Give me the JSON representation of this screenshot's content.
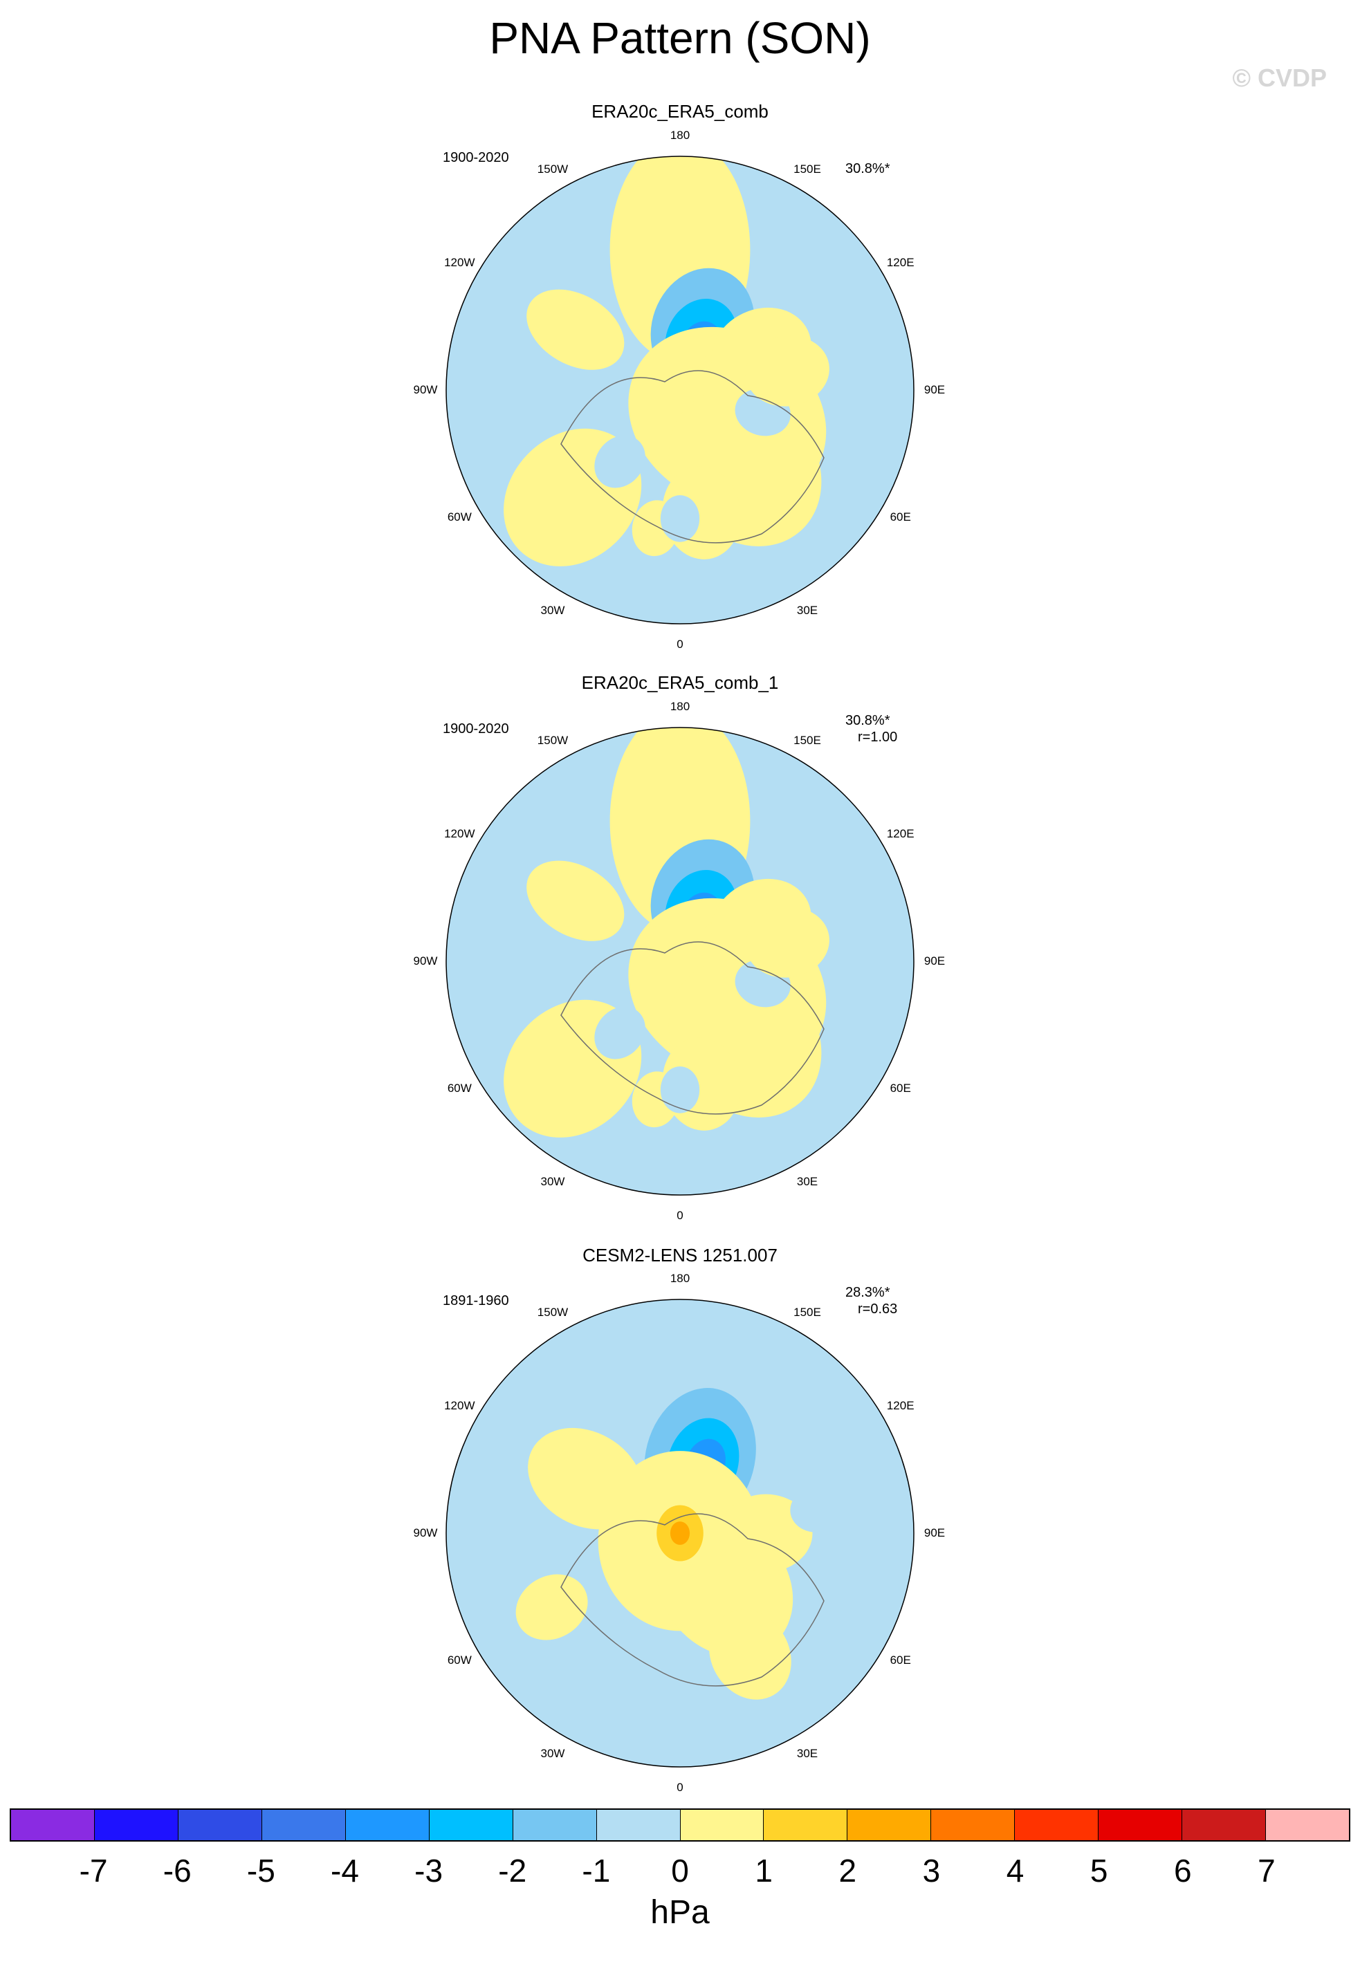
{
  "figure": {
    "title": "PNA Pattern (SON)",
    "watermark": "© CVDP",
    "unit": "hPa"
  },
  "colors": {
    "neg7": "#8a2be2",
    "neg6": "#1e12ff",
    "neg5": "#2f4ce6",
    "neg4": "#3a78eb",
    "neg3": "#1e98ff",
    "neg2": "#00bfff",
    "neg1": "#76c6f2",
    "neg0": "#b4def3",
    "pos0": "#fff68f",
    "pos1": "#ffd32a",
    "pos2": "#ffaa00",
    "pos3": "#ff7700",
    "pos4": "#ff3300",
    "pos5": "#e60000",
    "pos6": "#cc1b1b",
    "pos7": "#ffb5b5",
    "coast": "#6e6e6e"
  },
  "longitude_labels": [
    "180",
    "150E",
    "120E",
    "90E",
    "60E",
    "30E",
    "0",
    "30W",
    "60W",
    "90W",
    "120W",
    "150W"
  ],
  "panels": [
    {
      "title": "ERA20c_ERA5_comb",
      "years": "1900-2020",
      "pct": "30.8%*",
      "r": "",
      "features": [
        {
          "lon": 180,
          "colat": 36,
          "level": 0,
          "size": 18,
          "elong": 1.6
        },
        {
          "lon": 160,
          "colat": 17,
          "level": -1,
          "size": 13,
          "elong": 1.2
        },
        {
          "lon": 157,
          "colat": 14,
          "level": -2,
          "size": 9,
          "elong": 1.2
        },
        {
          "lon": 155,
          "colat": 13,
          "level": -3,
          "size": 5,
          "elong": 1.2
        },
        {
          "lon": 60,
          "colat": 14,
          "level": 0,
          "size": 22,
          "elong": 1.2
        },
        {
          "lon": 100,
          "colat": 16,
          "level": 0,
          "size": 10,
          "elong": 1.2
        },
        {
          "lon": 115,
          "colat": 23,
          "level": 0,
          "size": 11,
          "elong": 1.2
        },
        {
          "lon": 40,
          "colat": 26,
          "level": 0,
          "size": 18,
          "elong": 1.2
        },
        {
          "lon": 75,
          "colat": 22,
          "level": -0.5,
          "size": 6,
          "elong": 1.2
        },
        {
          "lon": 100,
          "colat": 28,
          "level": 0,
          "size": 9,
          "elong": 1.2
        },
        {
          "lon": -120,
          "colat": 31,
          "level": 0,
          "size": 9,
          "elong": 1.5
        },
        {
          "lon": -45,
          "colat": 39,
          "level": 0,
          "size": 16,
          "elong": 1.2
        },
        {
          "lon": -10,
          "colat": 36,
          "level": 0,
          "size": 6,
          "elong": 1.2
        },
        {
          "lon": 10,
          "colat": 32,
          "level": 0,
          "size": 10,
          "elong": 1.2
        },
        {
          "lon": -40,
          "colat": 24,
          "level": -0.5,
          "size": 6,
          "elong": 1.2
        },
        {
          "lon": 0,
          "colat": 33,
          "level": -0.5,
          "size": 5,
          "elong": 1.2
        }
      ]
    },
    {
      "title": "ERA20c_ERA5_comb_1",
      "years": "1900-2020",
      "pct": "30.8%*",
      "r": "r=1.00",
      "features": [
        {
          "lon": 180,
          "colat": 36,
          "level": 0,
          "size": 18,
          "elong": 1.6
        },
        {
          "lon": 160,
          "colat": 17,
          "level": -1,
          "size": 13,
          "elong": 1.2
        },
        {
          "lon": 157,
          "colat": 14,
          "level": -2,
          "size": 9,
          "elong": 1.2
        },
        {
          "lon": 155,
          "colat": 13,
          "level": -3,
          "size": 5,
          "elong": 1.2
        },
        {
          "lon": 60,
          "colat": 14,
          "level": 0,
          "size": 22,
          "elong": 1.2
        },
        {
          "lon": 100,
          "colat": 16,
          "level": 0,
          "size": 10,
          "elong": 1.2
        },
        {
          "lon": 115,
          "colat": 23,
          "level": 0,
          "size": 11,
          "elong": 1.2
        },
        {
          "lon": 40,
          "colat": 26,
          "level": 0,
          "size": 18,
          "elong": 1.2
        },
        {
          "lon": 75,
          "colat": 22,
          "level": -0.5,
          "size": 6,
          "elong": 1.2
        },
        {
          "lon": 100,
          "colat": 28,
          "level": 0,
          "size": 9,
          "elong": 1.2
        },
        {
          "lon": -120,
          "colat": 31,
          "level": 0,
          "size": 9,
          "elong": 1.5
        },
        {
          "lon": -45,
          "colat": 39,
          "level": 0,
          "size": 16,
          "elong": 1.2
        },
        {
          "lon": -10,
          "colat": 36,
          "level": 0,
          "size": 6,
          "elong": 1.2
        },
        {
          "lon": 10,
          "colat": 32,
          "level": 0,
          "size": 10,
          "elong": 1.2
        },
        {
          "lon": -40,
          "colat": 24,
          "level": -0.5,
          "size": 6,
          "elong": 1.2
        },
        {
          "lon": 0,
          "colat": 33,
          "level": -0.5,
          "size": 5,
          "elong": 1.2
        }
      ]
    },
    {
      "title": "CESM2-LENS 1251.007",
      "years": "1891-1960",
      "pct": "28.3%*",
      "r": "r=0.63",
      "features": [
        {
          "lon": 165,
          "colat": 20,
          "level": -1,
          "size": 14,
          "elong": 1.3
        },
        {
          "lon": 162,
          "colat": 19,
          "level": -2,
          "size": 9,
          "elong": 1.3
        },
        {
          "lon": 160,
          "colat": 19,
          "level": -3,
          "size": 5,
          "elong": 1.3
        },
        {
          "lon": 0,
          "colat": 2,
          "level": 0,
          "size": 21,
          "elong": 1.1
        },
        {
          "lon": 40,
          "colat": 18,
          "level": 0,
          "size": 16,
          "elong": 1.2
        },
        {
          "lon": -120,
          "colat": 28,
          "level": 0,
          "size": 12,
          "elong": 1.3
        },
        {
          "lon": 90,
          "colat": 22,
          "level": 0,
          "size": 10,
          "elong": 1.2
        },
        {
          "lon": 120,
          "colat": 35,
          "level": -0.5,
          "size": 8,
          "elong": 1.2
        },
        {
          "lon": 100,
          "colat": 36,
          "level": -0.5,
          "size": 6,
          "elong": 1.2
        },
        {
          "lon": -60,
          "colat": 38,
          "level": 0,
          "size": 8,
          "elong": 1.2
        },
        {
          "lon": 30,
          "colat": 36,
          "level": 0,
          "size": 10,
          "elong": 1.2
        },
        {
          "lon": 0,
          "colat": 0,
          "level": 1,
          "size": 6,
          "elong": 1.2
        },
        {
          "lon": 0,
          "colat": 0,
          "level": 2,
          "size": 2.5,
          "elong": 1.2
        }
      ]
    }
  ],
  "colorbar": {
    "ticks": [
      "-7",
      "-6",
      "-5",
      "-4",
      "-3",
      "-2",
      "-1",
      "0",
      "1",
      "2",
      "3",
      "4",
      "5",
      "6",
      "7"
    ],
    "levels": [
      "neg7",
      "neg6",
      "neg5",
      "neg4",
      "neg3",
      "neg2",
      "neg1",
      "neg0",
      "pos0",
      "pos1",
      "pos2",
      "pos3",
      "pos4",
      "pos5",
      "pos6",
      "pos7"
    ]
  }
}
